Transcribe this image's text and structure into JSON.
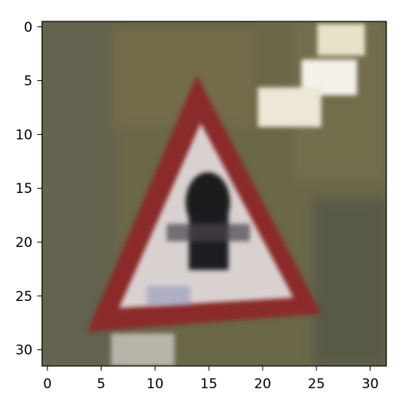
{
  "image": {
    "subject": "triangular warning road sign with red border",
    "symbol": "black vertical arrow / figure",
    "palette": {
      "background": "#6e6a4c",
      "sign_red": "#8c2a2a",
      "sign_white": "#d8d1d0",
      "symbol_black": "#1b1a1d",
      "highlight": "#f4f1e8"
    }
  },
  "axes": {
    "x_ticks": [
      0,
      5,
      10,
      15,
      20,
      25,
      30
    ],
    "y_ticks": [
      0,
      5,
      10,
      15,
      20,
      25,
      30
    ],
    "xlim": [
      -0.5,
      31.5
    ],
    "ylim": [
      31.5,
      -0.5
    ]
  }
}
